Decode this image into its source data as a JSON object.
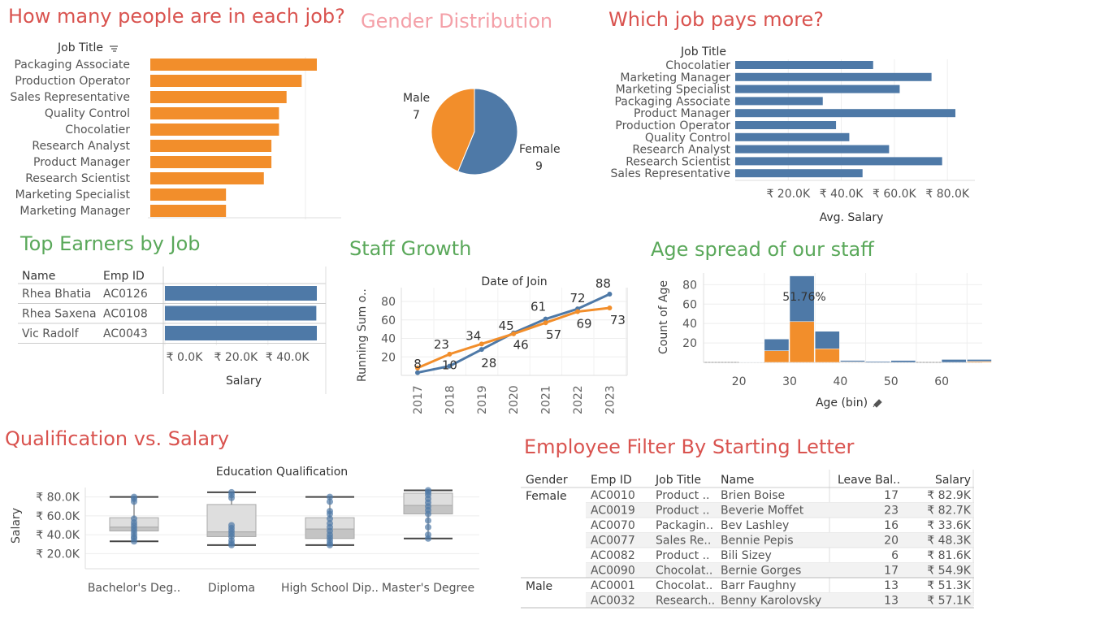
{
  "titles": {
    "people_per_job": "How many people are  in each job?",
    "gender": "Gender Distribution",
    "job_pay": "Which job pays more?",
    "top_earners": "Top Earners by Job",
    "staff_growth": "Staff Growth",
    "age_spread": "Age spread of our staff",
    "qualification": "Qualification vs. Salary",
    "employee_filter": "Employee Filter By Starting Letter"
  },
  "colors": {
    "orange": "#f28e2b",
    "blue": "#4e79a7",
    "title_red": "#d9534f",
    "title_pink": "#f4a0a8",
    "title_green": "#5aa85a"
  },
  "chart_data": [
    {
      "id": "people_per_job",
      "type": "bar",
      "orientation": "horizontal",
      "header": "Job Title",
      "categories": [
        "Packaging Associate",
        "Production Operator",
        "Sales Representative",
        "Quality Control",
        "Chocolatier",
        "Research Analyst",
        "Product Manager",
        "Research Scientist",
        "Marketing Specialist",
        "Marketing Manager"
      ],
      "values": [
        22,
        20,
        18,
        17,
        17,
        16,
        16,
        15,
        10,
        10
      ],
      "xlim": [
        0,
        25
      ]
    },
    {
      "id": "gender",
      "type": "pie",
      "slices": [
        {
          "label": "Female",
          "value": 9
        },
        {
          "label": "Male",
          "value": 7
        }
      ]
    },
    {
      "id": "job_pay",
      "type": "bar",
      "orientation": "horizontal",
      "header": "Job Title",
      "categories": [
        "Chocolatier",
        "Marketing Manager",
        "Marketing Specialist",
        "Packaging Associate",
        "Product Manager",
        "Production Operator",
        "Quality Control",
        "Research Analyst",
        "Research Scientist",
        "Sales Representative"
      ],
      "values": [
        52000,
        74000,
        62000,
        33000,
        83000,
        38000,
        43000,
        58000,
        78000,
        48000
      ],
      "xlabel": "Avg. Salary",
      "ticks": [
        {
          "v": 20000,
          "label": "₹ 20.0K"
        },
        {
          "v": 40000,
          "label": "₹ 40.0K"
        },
        {
          "v": 60000,
          "label": "₹ 60.0K"
        },
        {
          "v": 80000,
          "label": "₹ 80.0K"
        }
      ],
      "xlim": [
        0,
        90000
      ]
    },
    {
      "id": "top_earners",
      "type": "table",
      "columns": [
        "Name",
        "Emp ID"
      ],
      "rows": [
        {
          "name": "Rhea Bhatia",
          "emp_id": "AC0126",
          "salary": 59000
        },
        {
          "name": "Rhea Saxena",
          "emp_id": "AC0108",
          "salary": 58800
        },
        {
          "name": "Vic Radolf",
          "emp_id": "AC0043",
          "salary": 59000
        }
      ],
      "xlabel": "Salary",
      "ticks": [
        {
          "v": 0,
          "label": "₹ 0.0K"
        },
        {
          "v": 20000,
          "label": "₹ 20.0K"
        },
        {
          "v": 40000,
          "label": "₹ 40.0K"
        }
      ],
      "xlim": [
        0,
        60000
      ]
    },
    {
      "id": "staff_growth",
      "type": "line",
      "header": "Date of Join",
      "ylabel": "Running Sum o..",
      "x": [
        "2017",
        "2018",
        "2019",
        "2020",
        "2021",
        "2022",
        "2023"
      ],
      "series": [
        {
          "name": "Female",
          "color": "#4e79a7",
          "values": [
            3,
            10,
            28,
            46,
            61,
            72,
            88
          ],
          "labels": [
            "",
            "10",
            "28",
            "46",
            "61",
            "72",
            "88"
          ]
        },
        {
          "name": "Male",
          "color": "#f28e2b",
          "values": [
            8,
            23,
            34,
            45,
            57,
            69,
            73
          ],
          "labels": [
            "8",
            "23",
            "34",
            "45",
            "57",
            "69",
            "73"
          ]
        }
      ],
      "yticks": [
        20,
        40,
        60,
        80
      ],
      "ylim": [
        0,
        95
      ]
    },
    {
      "id": "age_spread",
      "type": "bar",
      "stacked": true,
      "xlabel": "Age (bin)",
      "ylabel": "Count of Age",
      "bins": [
        {
          "start": 20,
          "female": 0.3,
          "male": 0.3
        },
        {
          "start": 25,
          "female": 12,
          "male": 12
        },
        {
          "start": 30,
          "female": 47,
          "male": 42
        },
        {
          "start": 35,
          "female": 18,
          "male": 14
        },
        {
          "start": 40,
          "female": 1.5,
          "male": 0.5
        },
        {
          "start": 45,
          "female": 1,
          "male": 0
        },
        {
          "start": 50,
          "female": 2,
          "male": 0
        },
        {
          "start": 55,
          "female": 0,
          "male": 0
        },
        {
          "start": 60,
          "female": 3,
          "male": 0
        },
        {
          "start": 65,
          "female": 2,
          "male": 1
        }
      ],
      "annotation": "51.76%",
      "xticks": [
        20,
        30,
        40,
        50,
        60
      ],
      "yticks": [
        20,
        40,
        60,
        80
      ],
      "ylim": [
        0,
        92
      ],
      "xlim": [
        13,
        68
      ]
    },
    {
      "id": "qualification",
      "type": "scatter",
      "subtype": "box",
      "header": "Education Qualification",
      "ylabel": "Salary",
      "categories": [
        "Bachelor's Deg..",
        "Diploma",
        "High School Dip..",
        "Master's Degree"
      ],
      "boxes": [
        {
          "min": 33000,
          "q1": 44000,
          "median": 48000,
          "q3": 58000,
          "max": 80000,
          "points": [
            33000,
            36000,
            38000,
            41000,
            44000,
            47000,
            50000,
            53000,
            57000,
            75000,
            78000,
            80000
          ]
        },
        {
          "min": 29000,
          "q1": 38000,
          "median": 43000,
          "q3": 72000,
          "max": 85000,
          "points": [
            29000,
            31000,
            34000,
            38000,
            41000,
            44000,
            47000,
            50000,
            79000,
            82000,
            85000
          ]
        },
        {
          "min": 29000,
          "q1": 36000,
          "median": 46000,
          "q3": 58000,
          "max": 80000,
          "points": [
            29000,
            31000,
            34000,
            37000,
            40000,
            44000,
            48000,
            52000,
            57000,
            62000,
            65000,
            75000,
            80000
          ]
        },
        {
          "min": 36000,
          "q1": 62000,
          "median": 71000,
          "q3": 84000,
          "max": 87000,
          "points": [
            36000,
            40000,
            48000,
            55000,
            62000,
            66000,
            70000,
            74000,
            78000,
            82000,
            85000,
            87000
          ]
        }
      ],
      "ticks": [
        {
          "v": 20000,
          "label": "₹ 20.0K"
        },
        {
          "v": 40000,
          "label": "₹ 40.0K"
        },
        {
          "v": 60000,
          "label": "₹ 60.0K"
        },
        {
          "v": 80000,
          "label": "₹ 80.0K"
        }
      ],
      "ylim": [
        10000,
        90000
      ]
    },
    {
      "id": "employee_filter",
      "type": "table",
      "columns": [
        "Gender",
        "Emp ID",
        "Job Title",
        "Name",
        "Leave Bal..",
        "Salary"
      ],
      "groups": [
        {
          "gender": "Female",
          "rows": [
            [
              "AC0010",
              "Product ..",
              "Brien Boise",
              "17",
              "₹ 82.9K"
            ],
            [
              "AC0019",
              "Product ..",
              "Beverie Moffet",
              "23",
              "₹ 82.7K"
            ],
            [
              "AC0070",
              "Packagin..",
              "Bev Lashley",
              "16",
              "₹ 33.6K"
            ],
            [
              "AC0077",
              "Sales Re..",
              "Bennie Pepis",
              "20",
              "₹ 48.3K"
            ],
            [
              "AC0082",
              "Product ..",
              "Bili Sizey",
              "6",
              "₹ 81.6K"
            ],
            [
              "AC0090",
              "Chocolat..",
              "Bernie Gorges",
              "17",
              "₹ 54.9K"
            ]
          ]
        },
        {
          "gender": "Male",
          "rows": [
            [
              "AC0001",
              "Chocolat..",
              "Barr Faughny",
              "13",
              "₹ 51.3K"
            ],
            [
              "AC0032",
              "Research..",
              "Benny Karolovsky",
              "13",
              "₹ 57.1K"
            ]
          ]
        }
      ]
    }
  ]
}
